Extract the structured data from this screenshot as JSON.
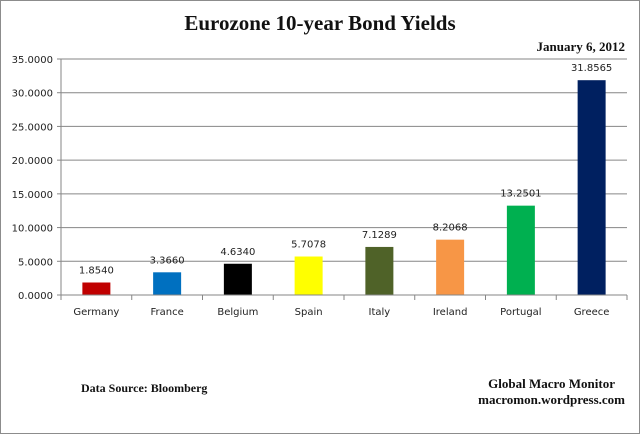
{
  "chart_data": {
    "type": "bar",
    "title": "Eurozone 10-year Bond Yields",
    "subtitle": "January 6, 2012",
    "categories": [
      "Germany",
      "France",
      "Belgium",
      "Spain",
      "Italy",
      "Ireland",
      "Portugal",
      "Greece"
    ],
    "values": [
      1.854,
      3.366,
      4.634,
      5.7078,
      7.1289,
      8.2068,
      13.2501,
      31.8565
    ],
    "data_labels": [
      "1.8540",
      "3.3660",
      "4.6340",
      "5.7078",
      "7.1289",
      "8.2068",
      "13.2501",
      "31.8565"
    ],
    "colors": [
      "#c00000",
      "#0070c0",
      "#000000",
      "#ffff00",
      "#4f6228",
      "#f79646",
      "#00b050",
      "#002060"
    ],
    "ylim": [
      0,
      35
    ],
    "yticks": [
      0,
      5,
      10,
      15,
      20,
      25,
      30,
      35
    ],
    "ytick_labels": [
      "0.0000",
      "5.0000",
      "10.0000",
      "15.0000",
      "20.0000",
      "25.0000",
      "30.0000",
      "35.0000"
    ],
    "grid": true,
    "xlabel": "",
    "ylabel": ""
  },
  "footer": {
    "source": "Data Source:  Bloomberg",
    "credit_line1": "Global Macro Monitor",
    "credit_line2": "macromon.wordpress.com"
  }
}
